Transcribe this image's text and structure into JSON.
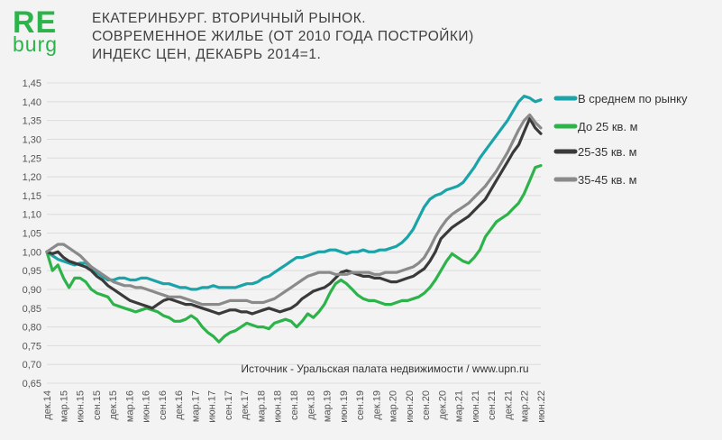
{
  "logo": {
    "top": "RE",
    "bottom": "burg"
  },
  "title_lines": [
    "ЕКАТЕРИНБУРГ. ВТОРИЧНЫЙ РЫНОК.",
    "СОВРЕМЕННОЕ ЖИЛЬЕ (ОТ 2010 ГОДА ПОСТРОЙКИ)",
    "ИНДЕКС ЦЕН, ДЕКАБРЬ 2014=1."
  ],
  "source": "Источник - Уральская палата недвижимости / www.upn.ru",
  "chart_data": {
    "type": "line",
    "title": "ЕКАТЕРИНБУРГ. ВТОРИЧНЫЙ РЫНОК. СОВРЕМЕННОЕ ЖИЛЬЕ (ОТ 2010 ГОДА ПОСТРОЙКИ) ИНДЕКС ЦЕН, ДЕКАБРЬ 2014=1.",
    "xlabel": "",
    "ylabel": "",
    "ylim": [
      0.65,
      1.45
    ],
    "y_ticks": [
      "1,45",
      "1,40",
      "1,35",
      "1,30",
      "1,25",
      "1,20",
      "1,15",
      "1,10",
      "1,05",
      "1,00",
      "0,95",
      "0,90",
      "0,85",
      "0,80",
      "0,75",
      "0,70",
      "0,65"
    ],
    "x_tick_labels": [
      "дек.14",
      "мар.15",
      "июн.15",
      "сен.15",
      "дек.15",
      "мар.16",
      "июн.16",
      "сен.16",
      "дек.16",
      "мар.17",
      "июн.17",
      "сен.17",
      "дек.17",
      "мар.18",
      "июн.18",
      "сен.18",
      "дек.18",
      "мар.19",
      "июн.19",
      "сен.19",
      "дек.19",
      "мар.20",
      "июн.20",
      "сен.20",
      "дек.20",
      "мар.21",
      "июн.21",
      "сен.21",
      "дек.21",
      "мар.22",
      "июн.22"
    ],
    "grid": true,
    "legend_position": "right",
    "series": [
      {
        "name": "В среднем по рынку",
        "color": "#1aa3a8",
        "values": [
          1.0,
          0.99,
          0.98,
          0.975,
          0.97,
          0.965,
          0.97,
          0.97,
          0.96,
          0.945,
          0.935,
          0.925,
          0.925,
          0.93,
          0.93,
          0.925,
          0.925,
          0.93,
          0.93,
          0.925,
          0.92,
          0.915,
          0.915,
          0.91,
          0.905,
          0.905,
          0.9,
          0.9,
          0.905,
          0.905,
          0.91,
          0.905,
          0.905,
          0.905,
          0.905,
          0.91,
          0.915,
          0.915,
          0.92,
          0.93,
          0.935,
          0.945,
          0.955,
          0.965,
          0.975,
          0.985,
          0.985,
          0.99,
          0.995,
          1.0,
          1.0,
          1.005,
          1.005,
          1.0,
          0.995,
          1.0,
          1.0,
          1.005,
          1.0,
          1.0,
          1.005,
          1.005,
          1.01,
          1.015,
          1.025,
          1.04,
          1.06,
          1.09,
          1.12,
          1.14,
          1.15,
          1.155,
          1.165,
          1.17,
          1.175,
          1.185,
          1.205,
          1.225,
          1.25,
          1.27,
          1.29,
          1.31,
          1.33,
          1.35,
          1.375,
          1.4,
          1.415,
          1.41,
          1.4,
          1.405
        ]
      },
      {
        "name": "До 25 кв. м",
        "color": "#2cb34a",
        "values": [
          1.0,
          0.95,
          0.965,
          0.93,
          0.905,
          0.93,
          0.93,
          0.92,
          0.9,
          0.89,
          0.885,
          0.88,
          0.86,
          0.855,
          0.85,
          0.845,
          0.84,
          0.845,
          0.85,
          0.845,
          0.84,
          0.83,
          0.825,
          0.815,
          0.815,
          0.82,
          0.83,
          0.82,
          0.8,
          0.785,
          0.775,
          0.76,
          0.775,
          0.785,
          0.79,
          0.8,
          0.81,
          0.805,
          0.8,
          0.8,
          0.795,
          0.81,
          0.815,
          0.82,
          0.815,
          0.8,
          0.815,
          0.835,
          0.825,
          0.84,
          0.86,
          0.89,
          0.915,
          0.925,
          0.915,
          0.9,
          0.885,
          0.875,
          0.87,
          0.87,
          0.865,
          0.86,
          0.86,
          0.865,
          0.87,
          0.87,
          0.875,
          0.88,
          0.89,
          0.905,
          0.925,
          0.95,
          0.975,
          0.995,
          0.985,
          0.975,
          0.97,
          0.985,
          1.005,
          1.04,
          1.06,
          1.08,
          1.09,
          1.1,
          1.115,
          1.13,
          1.155,
          1.19,
          1.225,
          1.23
        ]
      },
      {
        "name": "25-35 кв. м",
        "color": "#3a3a3a",
        "values": [
          1.0,
          0.995,
          1.0,
          0.985,
          0.975,
          0.97,
          0.965,
          0.96,
          0.95,
          0.935,
          0.925,
          0.91,
          0.9,
          0.89,
          0.88,
          0.87,
          0.865,
          0.86,
          0.855,
          0.85,
          0.86,
          0.87,
          0.875,
          0.87,
          0.865,
          0.86,
          0.86,
          0.855,
          0.85,
          0.845,
          0.84,
          0.835,
          0.84,
          0.845,
          0.845,
          0.84,
          0.84,
          0.835,
          0.84,
          0.845,
          0.85,
          0.845,
          0.84,
          0.845,
          0.85,
          0.86,
          0.875,
          0.885,
          0.895,
          0.9,
          0.905,
          0.915,
          0.93,
          0.945,
          0.95,
          0.945,
          0.94,
          0.935,
          0.935,
          0.93,
          0.93,
          0.925,
          0.92,
          0.92,
          0.925,
          0.93,
          0.935,
          0.945,
          0.955,
          0.975,
          1.0,
          1.035,
          1.05,
          1.065,
          1.075,
          1.085,
          1.095,
          1.11,
          1.125,
          1.14,
          1.165,
          1.19,
          1.215,
          1.24,
          1.265,
          1.285,
          1.32,
          1.355,
          1.33,
          1.315
        ]
      },
      {
        "name": "35-45 кв. м",
        "color": "#8a8a8a",
        "values": [
          1.0,
          1.01,
          1.02,
          1.02,
          1.01,
          1.0,
          0.99,
          0.975,
          0.96,
          0.95,
          0.94,
          0.93,
          0.92,
          0.915,
          0.91,
          0.91,
          0.905,
          0.905,
          0.9,
          0.895,
          0.89,
          0.885,
          0.88,
          0.88,
          0.88,
          0.875,
          0.87,
          0.865,
          0.86,
          0.86,
          0.86,
          0.86,
          0.865,
          0.87,
          0.87,
          0.87,
          0.87,
          0.865,
          0.865,
          0.865,
          0.87,
          0.875,
          0.885,
          0.895,
          0.905,
          0.915,
          0.925,
          0.935,
          0.94,
          0.945,
          0.945,
          0.945,
          0.94,
          0.94,
          0.94,
          0.945,
          0.945,
          0.945,
          0.945,
          0.94,
          0.94,
          0.945,
          0.945,
          0.945,
          0.95,
          0.955,
          0.96,
          0.97,
          0.985,
          1.01,
          1.04,
          1.065,
          1.085,
          1.1,
          1.11,
          1.12,
          1.13,
          1.145,
          1.16,
          1.175,
          1.195,
          1.215,
          1.24,
          1.265,
          1.295,
          1.325,
          1.35,
          1.365,
          1.345,
          1.33
        ]
      }
    ]
  }
}
